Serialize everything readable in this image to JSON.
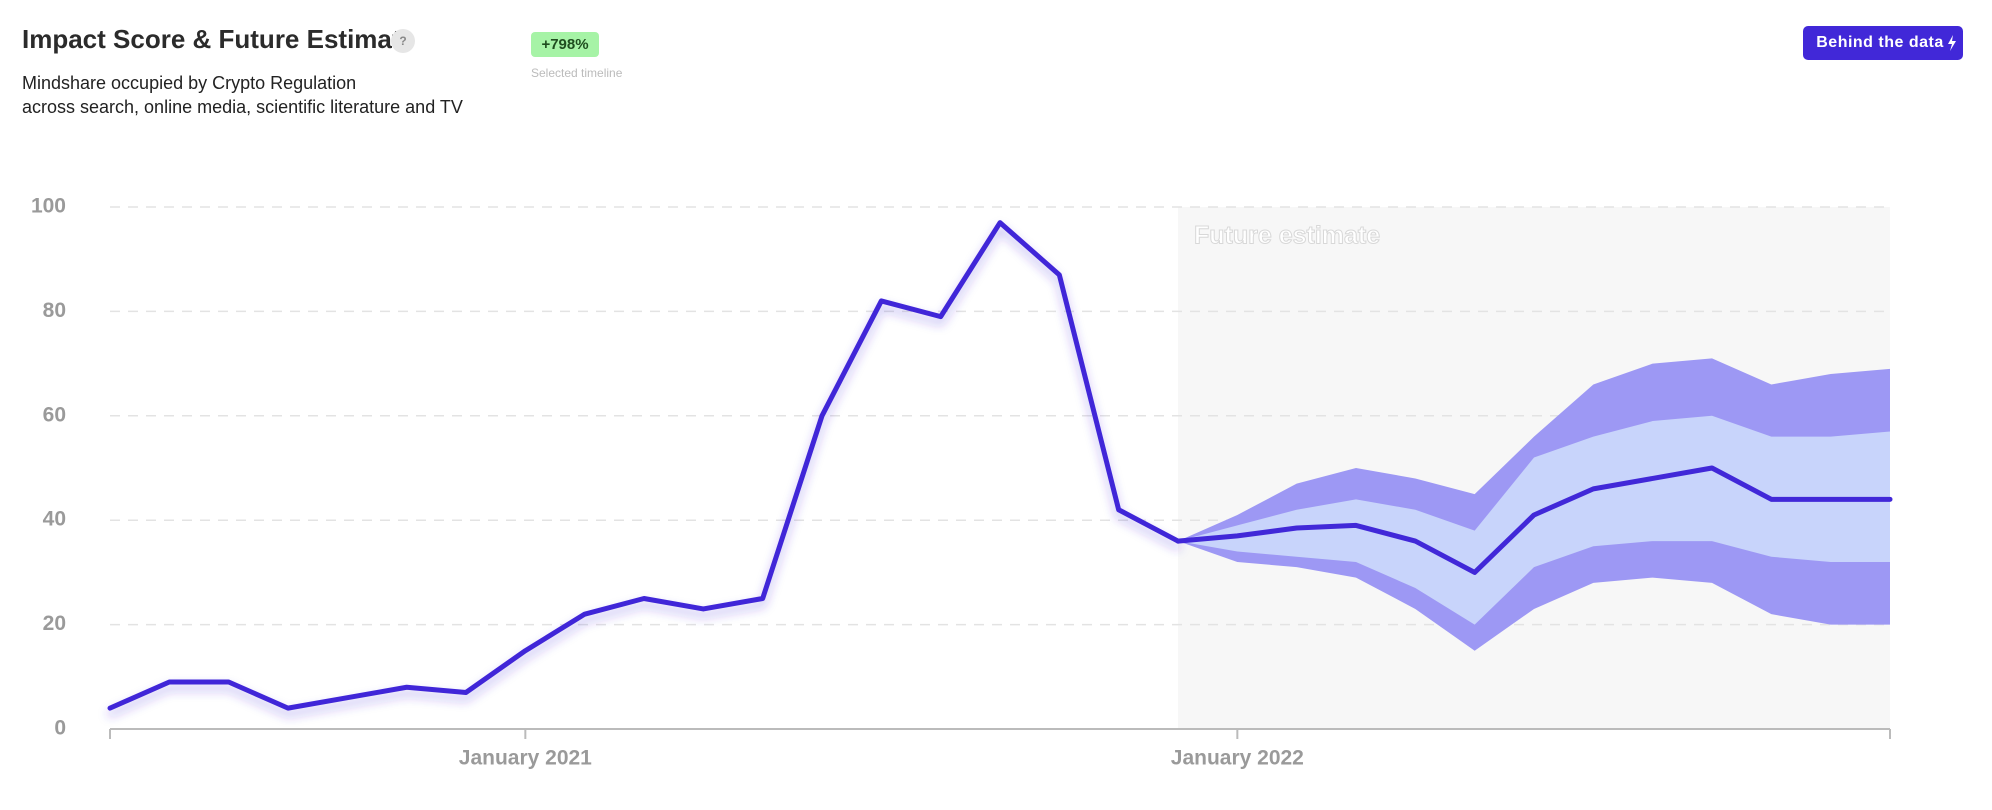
{
  "header": {
    "title": "Impact Score & Future Estimate",
    "help": "?",
    "badge": "+798%",
    "badge_caption": "Selected timeline",
    "subtitle": [
      "Mindshare occupied by Crypto Regulation",
      "across search, online media, scientific literature and TV"
    ],
    "button": "Behind the data"
  },
  "chart_data": {
    "type": "line",
    "annotation": "Future estimate",
    "forecast_start": "2021-12",
    "x": [
      "2020-06",
      "2020-07",
      "2020-08",
      "2020-09",
      "2020-10",
      "2020-11",
      "2020-12",
      "2021-01",
      "2021-02",
      "2021-03",
      "2021-04",
      "2021-05",
      "2021-06",
      "2021-07",
      "2021-08",
      "2021-09",
      "2021-10",
      "2021-11",
      "2021-12",
      "2022-01",
      "2022-02",
      "2022-03",
      "2022-04",
      "2022-05",
      "2022-06",
      "2022-07",
      "2022-08",
      "2022-09",
      "2022-10",
      "2022-11",
      "2022-12"
    ],
    "series": [
      {
        "name": "Impact score",
        "color": "#4128d8",
        "values": [
          4,
          9,
          9,
          4,
          6,
          8,
          7,
          15,
          22,
          25,
          23,
          25,
          60,
          82,
          79,
          97,
          87,
          42,
          36,
          null,
          null,
          null,
          null,
          null,
          null,
          null,
          null,
          null,
          null,
          null,
          null
        ]
      },
      {
        "name": "Estimate",
        "color": "#4128d8",
        "values": [
          null,
          null,
          null,
          null,
          null,
          null,
          null,
          null,
          null,
          null,
          null,
          null,
          null,
          null,
          null,
          null,
          null,
          null,
          36,
          37,
          38.5,
          39,
          36,
          30,
          41,
          46,
          48,
          50,
          44,
          44,
          44
        ]
      }
    ],
    "bands": [
      {
        "color": "#9d98f4",
        "low": [
          null,
          null,
          null,
          null,
          null,
          null,
          null,
          null,
          null,
          null,
          null,
          null,
          null,
          null,
          null,
          null,
          null,
          null,
          36,
          32,
          31,
          29,
          23,
          15,
          23,
          28,
          29,
          28,
          22,
          20,
          20
        ],
        "high": [
          null,
          null,
          null,
          null,
          null,
          null,
          null,
          null,
          null,
          null,
          null,
          null,
          null,
          null,
          null,
          null,
          null,
          null,
          36,
          41,
          47,
          50,
          48,
          45,
          56,
          66,
          70,
          71,
          66,
          68,
          69
        ]
      },
      {
        "color": "#c8d4fb",
        "low": [
          null,
          null,
          null,
          null,
          null,
          null,
          null,
          null,
          null,
          null,
          null,
          null,
          null,
          null,
          null,
          null,
          null,
          null,
          36,
          34,
          33,
          32,
          27,
          20,
          31,
          35,
          36,
          36,
          33,
          32,
          32
        ],
        "high": [
          null,
          null,
          null,
          null,
          null,
          null,
          null,
          null,
          null,
          null,
          null,
          null,
          null,
          null,
          null,
          null,
          null,
          null,
          36,
          39,
          42,
          44,
          42,
          38,
          52,
          56,
          59,
          60,
          56,
          56,
          57
        ]
      }
    ],
    "xlim": [
      "2020-06",
      "2022-12"
    ],
    "xticks": [
      {
        "value": "2021-01",
        "label": "January 2021"
      },
      {
        "value": "2022-01",
        "label": "January 2022"
      }
    ],
    "ylim": [
      0,
      100
    ],
    "yticks": [
      0,
      20,
      40,
      60,
      80,
      100
    ],
    "grid": true
  }
}
